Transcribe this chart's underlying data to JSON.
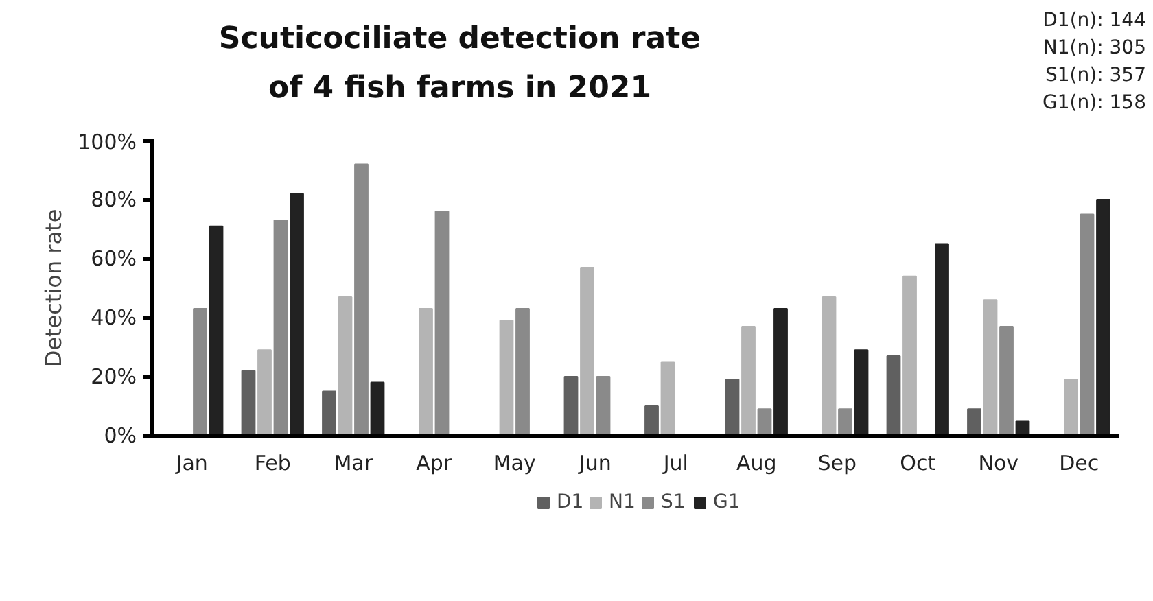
{
  "chart_data": {
    "type": "bar",
    "title": "Scuticociliate detection rate\nof 4 fish farms in 2021",
    "ylabel": "Detection rate",
    "categories": [
      "Jan",
      "Feb",
      "Mar",
      "Apr",
      "May",
      "Jun",
      "Jul",
      "Aug",
      "Sep",
      "Oct",
      "Nov",
      "Dec"
    ],
    "series": [
      {
        "name": "D1",
        "color": "#606060",
        "values": [
          0,
          22,
          15,
          0,
          0,
          20,
          10,
          19,
          0,
          27,
          9,
          0
        ]
      },
      {
        "name": "N1",
        "color": "#b4b4b4",
        "values": [
          0,
          29,
          47,
          43,
          39,
          57,
          25,
          37,
          47,
          54,
          46,
          19
        ]
      },
      {
        "name": "S1",
        "color": "#8a8a8a",
        "values": [
          43,
          73,
          92,
          76,
          43,
          20,
          0,
          9,
          9,
          0,
          37,
          75
        ]
      },
      {
        "name": "G1",
        "color": "#222222",
        "values": [
          71,
          82,
          18,
          0,
          0,
          0,
          0,
          43,
          29,
          65,
          5,
          80
        ]
      }
    ],
    "ylim": [
      0,
      100
    ],
    "yticks": [
      {
        "value": 0,
        "label": "0%"
      },
      {
        "value": 20,
        "label": "20%"
      },
      {
        "value": 40,
        "label": "40%"
      },
      {
        "value": 60,
        "label": "60%"
      },
      {
        "value": 80,
        "label": "80%"
      },
      {
        "value": 100,
        "label": "100%"
      }
    ],
    "annotations": [
      "D1(n): 144",
      "N1(n): 305",
      "S1(n): 357",
      "G1(n): 158"
    ],
    "legend": "bottom",
    "grid": false
  }
}
